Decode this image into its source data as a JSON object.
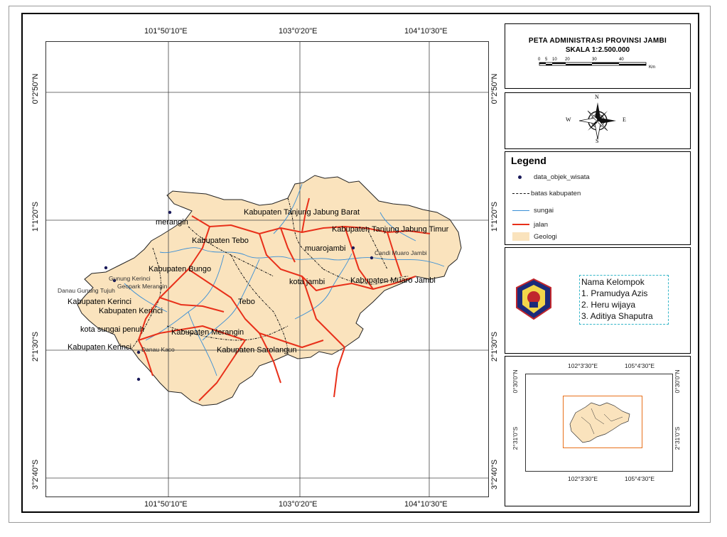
{
  "map": {
    "grid_labels": {
      "lon_top": [
        "101°50'10\"E",
        "103°0'20\"E",
        "104°10'30\"E"
      ],
      "lon_bottom": [
        "101°50'10\"E",
        "103°0'20\"E",
        "104°10'30\"E"
      ],
      "lat_left": [
        "0°2'50\"N",
        "1°1'20\"S",
        "2°1'30\"S",
        "3°2'40\"S"
      ],
      "lat_right": [
        "0°2'50\"N",
        "1°1'20\"S",
        "2°1'30\"S",
        "3°2'40\"S"
      ]
    },
    "place_labels": [
      "Kabupaten Tanjung Jabung Barat",
      "merangin",
      "Kabupaten Tanjung Jabung Timur",
      "Kabupaten Tebo",
      "muarojambi",
      "Candi Muaro Jambi",
      "Kabupaten Bungo",
      "Gunung Kerinci",
      "Geopark Merangin",
      "Danau Gunung Tujuh",
      "kota jambi",
      "Kabupaten Muaro Jambi",
      "Kabupaten Kerinci",
      "Kabupaten Kerinci",
      "Tebo",
      "kota sungai penuh",
      "Kabupaten Merangin",
      "Kabupaten Kerinci",
      "Danau Kaco",
      "Kabupaten Sarolangun"
    ],
    "colors": {
      "land": "#fae3bd",
      "road": "#e8301a",
      "river": "#3a8fd6",
      "boundary": "#111111"
    }
  },
  "title": {
    "line1": "PETA ADMINISTRASI PROVINSI JAMBI",
    "line2": "SKALA 1:2.500.000",
    "scale_ticks": [
      "0",
      "5",
      "10",
      "20",
      "30",
      "40"
    ],
    "scale_unit": "Km"
  },
  "north_arrow": {
    "n": "N",
    "s": "S",
    "e": "E",
    "w": "W"
  },
  "legend": {
    "title": "Legend",
    "items": [
      "data_objek_wisata",
      "batas kabupaten",
      "sungai",
      "jalan",
      "Geologi"
    ]
  },
  "group": {
    "title": "Nama Kelompok",
    "members": [
      "1. Pramudya Azis",
      "2. Heru wijaya",
      "3. Aditiya Shaputra"
    ]
  },
  "inset": {
    "lon_top": [
      "102°3'30\"E",
      "105°4'30\"E"
    ],
    "lon_bottom": [
      "102°3'30\"E",
      "105°4'30\"E"
    ],
    "lat_left": [
      "0°30'0\"N",
      "2°31'0\"S"
    ],
    "lat_right": [
      "0°30'0\"N",
      "2°31'0\"S"
    ]
  }
}
